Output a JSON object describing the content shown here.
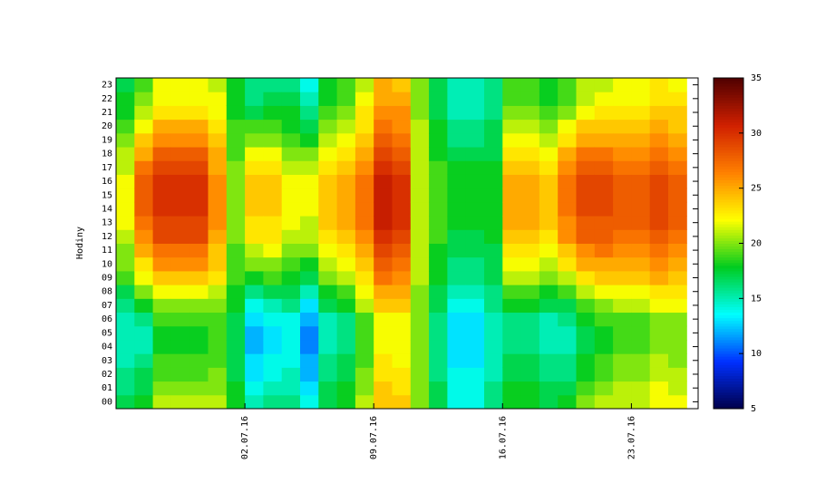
{
  "chart_data": {
    "type": "heatmap",
    "y_label": "Hodiny",
    "hours": [
      "00",
      "01",
      "02",
      "03",
      "04",
      "05",
      "06",
      "07",
      "08",
      "09",
      "10",
      "11",
      "12",
      "13",
      "14",
      "15",
      "16",
      "17",
      "18",
      "19",
      "20",
      "21",
      "22",
      "23"
    ],
    "categories": [
      null,
      null,
      null,
      null,
      null,
      null,
      null,
      "02.07.16",
      null,
      null,
      null,
      null,
      null,
      null,
      "09.07.16",
      null,
      null,
      null,
      null,
      null,
      null,
      "16.07.16",
      null,
      null,
      null,
      null,
      null,
      null,
      "23.07.16",
      null,
      null
    ],
    "values": [
      [
        17,
        16,
        16,
        15,
        15,
        15,
        15,
        16,
        17,
        19,
        20,
        20,
        21,
        22,
        22,
        22,
        22,
        21,
        21,
        20,
        19,
        18,
        18,
        17
      ],
      [
        18,
        17,
        17,
        16,
        15,
        15,
        16,
        18,
        20,
        22,
        23,
        25,
        26,
        27,
        28,
        28,
        28,
        27,
        25,
        24,
        22,
        21,
        20,
        19
      ],
      [
        21,
        20,
        19,
        19,
        18,
        18,
        19,
        20,
        22,
        24,
        26,
        27,
        29,
        29,
        30,
        30,
        30,
        29,
        28,
        26,
        25,
        23,
        22,
        22
      ],
      [
        21,
        20,
        19,
        19,
        18,
        18,
        19,
        20,
        22,
        24,
        26,
        27,
        29,
        29,
        30,
        30,
        30,
        29,
        28,
        26,
        25,
        23,
        22,
        22
      ],
      [
        21,
        20,
        19,
        19,
        18,
        18,
        19,
        20,
        22,
        24,
        26,
        27,
        29,
        29,
        30,
        30,
        30,
        29,
        28,
        26,
        25,
        23,
        22,
        22
      ],
      [
        21,
        20,
        20,
        19,
        19,
        19,
        19,
        20,
        21,
        23,
        24,
        24,
        25,
        26,
        26,
        26,
        26,
        25,
        25,
        24,
        23,
        22,
        22,
        21
      ],
      [
        18,
        18,
        17,
        17,
        17,
        17,
        17,
        18,
        18,
        19,
        19,
        19,
        20,
        20,
        20,
        20,
        20,
        20,
        19,
        19,
        19,
        18,
        18,
        18
      ],
      [
        15,
        14,
        13,
        13,
        12,
        12,
        13,
        14,
        16,
        18,
        20,
        21,
        23,
        23,
        24,
        24,
        24,
        23,
        22,
        20,
        19,
        17,
        16,
        16
      ],
      [
        16,
        15,
        14,
        14,
        13,
        13,
        14,
        15,
        17,
        19,
        20,
        22,
        23,
        23,
        24,
        24,
        24,
        23,
        22,
        20,
        19,
        18,
        17,
        16
      ],
      [
        16,
        15,
        15,
        14,
        14,
        14,
        14,
        16,
        17,
        18,
        19,
        20,
        21,
        22,
        22,
        22,
        22,
        21,
        20,
        19,
        18,
        18,
        17,
        16
      ],
      [
        14,
        13,
        12,
        12,
        11,
        11,
        12,
        13,
        15,
        17,
        18,
        20,
        21,
        21,
        22,
        22,
        22,
        21,
        20,
        18,
        17,
        16,
        15,
        14
      ],
      [
        17,
        17,
        16,
        16,
        15,
        15,
        15,
        17,
        18,
        20,
        21,
        22,
        23,
        24,
        24,
        24,
        24,
        23,
        22,
        21,
        20,
        19,
        18,
        18
      ],
      [
        18,
        18,
        17,
        17,
        16,
        16,
        16,
        18,
        19,
        21,
        22,
        23,
        24,
        25,
        25,
        25,
        25,
        24,
        23,
        22,
        21,
        20,
        19,
        19
      ],
      [
        21,
        20,
        20,
        19,
        19,
        19,
        19,
        21,
        22,
        23,
        24,
        25,
        26,
        27,
        27,
        27,
        27,
        26,
        25,
        24,
        23,
        23,
        22,
        21
      ],
      [
        24,
        24,
        23,
        23,
        22,
        22,
        22,
        24,
        25,
        27,
        28,
        29,
        30,
        31,
        31,
        31,
        31,
        30,
        29,
        28,
        27,
        26,
        25,
        25
      ],
      [
        24,
        23,
        23,
        22,
        22,
        22,
        22,
        24,
        25,
        26,
        27,
        28,
        29,
        30,
        30,
        30,
        30,
        29,
        28,
        27,
        26,
        26,
        25,
        24
      ],
      [
        20,
        20,
        20,
        20,
        20,
        20,
        20,
        20,
        20,
        21,
        21,
        21,
        21,
        21,
        21,
        21,
        21,
        21,
        21,
        21,
        21,
        20,
        20,
        20
      ],
      [
        17,
        17,
        16,
        16,
        16,
        16,
        16,
        17,
        17,
        18,
        18,
        18,
        19,
        19,
        19,
        19,
        19,
        19,
        18,
        18,
        18,
        17,
        17,
        17
      ],
      [
        14,
        14,
        14,
        13,
        13,
        13,
        13,
        14,
        15,
        16,
        16,
        17,
        17,
        18,
        18,
        18,
        18,
        18,
        17,
        16,
        16,
        15,
        15,
        15
      ],
      [
        14,
        14,
        14,
        13,
        13,
        13,
        13,
        14,
        15,
        16,
        16,
        17,
        17,
        18,
        18,
        18,
        18,
        18,
        17,
        16,
        16,
        15,
        15,
        15
      ],
      [
        16,
        16,
        15,
        15,
        15,
        15,
        15,
        16,
        16,
        17,
        17,
        17,
        18,
        18,
        18,
        18,
        18,
        18,
        17,
        17,
        17,
        16,
        16,
        16
      ],
      [
        18,
        18,
        17,
        17,
        16,
        16,
        16,
        18,
        19,
        21,
        22,
        23,
        24,
        25,
        25,
        25,
        25,
        24,
        23,
        22,
        21,
        20,
        19,
        19
      ],
      [
        18,
        18,
        17,
        17,
        16,
        16,
        16,
        18,
        19,
        21,
        22,
        23,
        24,
        25,
        25,
        25,
        25,
        24,
        23,
        22,
        21,
        20,
        19,
        19
      ],
      [
        17,
        17,
        16,
        16,
        15,
        15,
        15,
        17,
        18,
        20,
        21,
        22,
        23,
        24,
        24,
        24,
        24,
        23,
        22,
        21,
        20,
        19,
        18,
        18
      ],
      [
        18,
        17,
        16,
        16,
        15,
        15,
        16,
        17,
        19,
        21,
        23,
        24,
        26,
        26,
        27,
        27,
        27,
        26,
        25,
        23,
        22,
        20,
        19,
        19
      ],
      [
        20,
        19,
        18,
        18,
        17,
        17,
        18,
        19,
        21,
        23,
        25,
        26,
        28,
        28,
        29,
        29,
        29,
        28,
        27,
        25,
        24,
        22,
        21,
        21
      ],
      [
        21,
        20,
        19,
        19,
        18,
        18,
        19,
        20,
        22,
        24,
        25,
        27,
        28,
        28,
        29,
        29,
        29,
        28,
        27,
        25,
        24,
        23,
        22,
        21
      ],
      [
        21,
        21,
        20,
        20,
        19,
        19,
        19,
        21,
        22,
        24,
        25,
        26,
        27,
        28,
        28,
        28,
        28,
        27,
        26,
        25,
        24,
        23,
        22,
        22
      ],
      [
        21,
        21,
        20,
        20,
        19,
        19,
        19,
        21,
        22,
        24,
        25,
        26,
        27,
        28,
        28,
        28,
        28,
        27,
        26,
        25,
        24,
        23,
        22,
        22
      ],
      [
        22,
        22,
        21,
        21,
        20,
        20,
        20,
        22,
        23,
        25,
        26,
        27,
        28,
        29,
        29,
        29,
        29,
        28,
        27,
        26,
        25,
        24,
        23,
        23
      ],
      [
        22,
        21,
        21,
        20,
        20,
        20,
        20,
        22,
        23,
        24,
        25,
        26,
        27,
        28,
        28,
        28,
        28,
        27,
        26,
        25,
        24,
        24,
        23,
        22
      ]
    ],
    "zlim": [
      5,
      35
    ],
    "zticks": [
      5,
      10,
      15,
      20,
      25,
      30,
      35
    ],
    "colormap": [
      "#00004a",
      "#0030ff",
      "#00ffff",
      "#00cc20",
      "#ffff00",
      "#ff8000",
      "#d02000",
      "#500000"
    ]
  }
}
